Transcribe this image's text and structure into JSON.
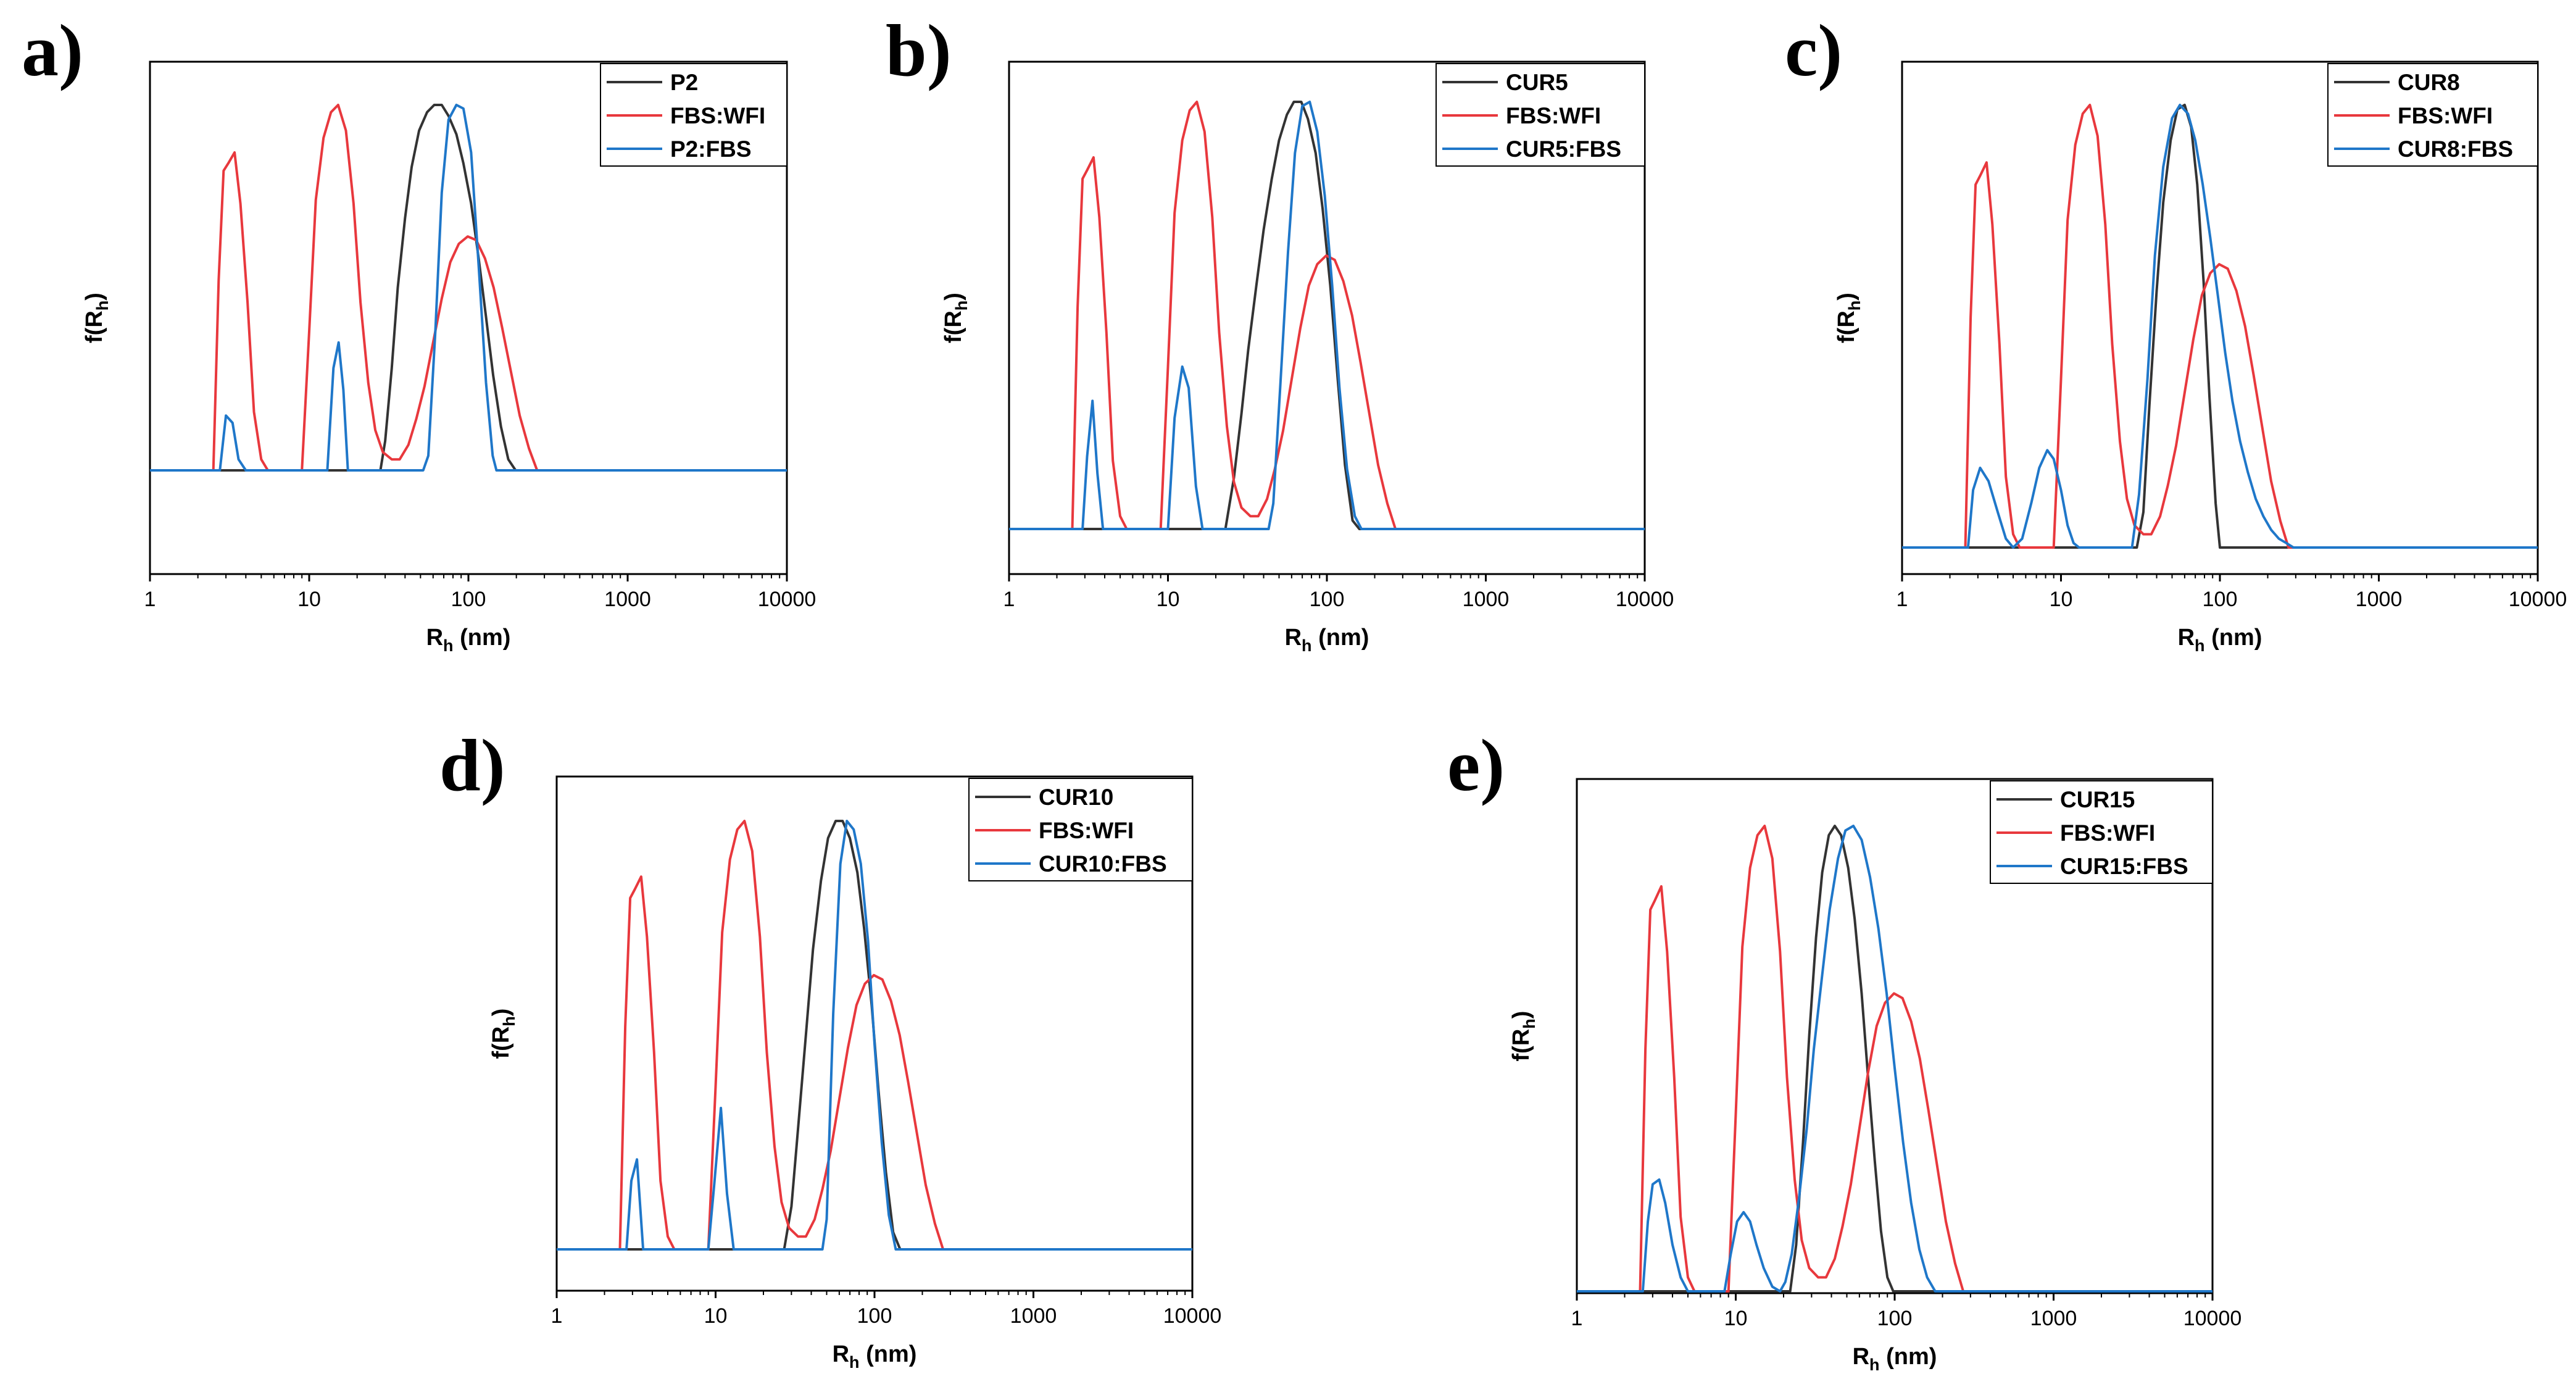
{
  "colors": {
    "black": "#333333",
    "red": "#e8383d",
    "blue": "#1f77c9"
  },
  "chart_data": [
    {
      "type": "line",
      "panel": "a)",
      "xscale": "log",
      "xlim": [
        1,
        10000
      ],
      "xticks": [
        "1",
        "10",
        "100",
        "1000",
        "10000"
      ],
      "xlabel": "R",
      "xlabel_sub": "h",
      "xlabel_unit": " (nm)",
      "ylabel": "f(R",
      "ylabel_sub": "h",
      "ylabel_end": ")",
      "series": [
        {
          "name": "P2",
          "color": "black",
          "x": [
            1,
            28,
            30,
            33,
            36,
            40,
            44,
            49,
            55,
            61,
            68,
            75,
            84,
            93,
            104,
            116,
            129,
            143,
            160,
            178,
            198,
            220,
            10000
          ],
          "y": [
            0,
            0,
            0.08,
            0.28,
            0.5,
            0.69,
            0.83,
            0.93,
            0.98,
            1.0,
            1.0,
            0.97,
            0.92,
            0.84,
            0.73,
            0.58,
            0.42,
            0.26,
            0.12,
            0.03,
            0,
            0,
            0
          ]
        },
        {
          "name": "FBS:WFI",
          "color": "red",
          "x": [
            1,
            2.5,
            2.7,
            2.9,
            3.1,
            3.4,
            3.7,
            4.1,
            4.5,
            5.0,
            5.5,
            9.0,
            10,
            11,
            12.3,
            13.7,
            15.2,
            17,
            19,
            21,
            23.5,
            26,
            29,
            33,
            37,
            42,
            47,
            53,
            60,
            68,
            77,
            87,
            99,
            112,
            127,
            144,
            163,
            185,
            210,
            240,
            270,
            10000
          ],
          "y": [
            0,
            0,
            0.52,
            0.82,
            0.84,
            0.87,
            0.73,
            0.46,
            0.16,
            0.03,
            0,
            0,
            0.38,
            0.74,
            0.91,
            0.98,
            1.0,
            0.93,
            0.73,
            0.46,
            0.24,
            0.11,
            0.05,
            0.03,
            0.03,
            0.07,
            0.14,
            0.23,
            0.35,
            0.47,
            0.57,
            0.62,
            0.64,
            0.63,
            0.58,
            0.5,
            0.39,
            0.27,
            0.15,
            0.06,
            0,
            0
          ]
        },
        {
          "name": "P2:FBS",
          "color": "blue",
          "x": [
            1,
            2.75,
            3.0,
            3.3,
            3.6,
            4.0,
            13,
            14.2,
            15.3,
            16.4,
            17.5,
            52,
            56,
            62,
            68,
            75,
            84,
            93,
            104,
            116,
            129,
            142,
            150,
            10000
          ],
          "y": [
            0,
            0,
            0.15,
            0.13,
            0.03,
            0,
            0,
            0.28,
            0.35,
            0.22,
            0,
            0,
            0.04,
            0.38,
            0.76,
            0.96,
            1.0,
            0.99,
            0.87,
            0.56,
            0.24,
            0.04,
            0,
            0
          ]
        }
      ]
    },
    {
      "type": "line",
      "panel": "b)",
      "xscale": "log",
      "xlim": [
        1,
        10000
      ],
      "xticks": [
        "1",
        "10",
        "100",
        "1000",
        "10000"
      ],
      "xlabel": "R",
      "xlabel_sub": "h",
      "xlabel_unit": " (nm)",
      "ylabel": "f(R",
      "ylabel_sub": "h",
      "ylabel_end": ")",
      "series": [
        {
          "name": "CUR5",
          "color": "black",
          "x": [
            1,
            23,
            26,
            29,
            32,
            36,
            40,
            45,
            50,
            56,
            62,
            69,
            76,
            85,
            94,
            105,
            117,
            130,
            145,
            160,
            10000
          ],
          "y": [
            0,
            0,
            0.12,
            0.27,
            0.42,
            0.57,
            0.7,
            0.82,
            0.91,
            0.97,
            1.0,
            1.0,
            0.96,
            0.88,
            0.75,
            0.57,
            0.35,
            0.15,
            0.02,
            0,
            0
          ]
        },
        {
          "name": "FBS:WFI",
          "color": "red",
          "x": [
            1,
            2.5,
            2.7,
            2.9,
            3.1,
            3.4,
            3.7,
            4.1,
            4.5,
            5.0,
            5.5,
            9.0,
            10,
            11,
            12.3,
            13.7,
            15.2,
            17,
            19,
            21,
            23.5,
            26,
            29,
            33,
            37,
            42,
            47,
            53,
            60,
            68,
            77,
            87,
            99,
            112,
            127,
            144,
            163,
            185,
            210,
            240,
            270,
            10000
          ],
          "y": [
            0,
            0,
            0.52,
            0.82,
            0.84,
            0.87,
            0.73,
            0.46,
            0.16,
            0.03,
            0,
            0,
            0.38,
            0.74,
            0.91,
            0.98,
            1.0,
            0.93,
            0.73,
            0.46,
            0.24,
            0.11,
            0.05,
            0.03,
            0.03,
            0.07,
            0.14,
            0.23,
            0.35,
            0.47,
            0.57,
            0.62,
            0.64,
            0.63,
            0.58,
            0.5,
            0.39,
            0.27,
            0.15,
            0.06,
            0,
            0
          ]
        },
        {
          "name": "CUR5:FBS",
          "color": "blue",
          "x": [
            1,
            2.9,
            3.1,
            3.35,
            3.6,
            3.9,
            10,
            11,
            12.3,
            13.5,
            15,
            16.5,
            43,
            46,
            51,
            57,
            63,
            70,
            78,
            87,
            97,
            108,
            120,
            134,
            150,
            165,
            10000
          ],
          "y": [
            0,
            0,
            0.17,
            0.3,
            0.13,
            0,
            0,
            0.26,
            0.38,
            0.33,
            0.1,
            0,
            0,
            0.06,
            0.34,
            0.65,
            0.88,
            0.99,
            1.0,
            0.93,
            0.78,
            0.57,
            0.33,
            0.14,
            0.03,
            0,
            0
          ]
        }
      ]
    },
    {
      "type": "line",
      "panel": "c)",
      "xscale": "log",
      "xlim": [
        1,
        10000
      ],
      "xticks": [
        "1",
        "10",
        "100",
        "1000",
        "10000"
      ],
      "xlabel": "R",
      "xlabel_sub": "h",
      "xlabel_unit": " (nm)",
      "ylabel": "f(R",
      "ylabel_sub": "h",
      "ylabel_end": ")",
      "series": [
        {
          "name": "CUR8",
          "color": "black",
          "x": [
            1,
            30,
            33,
            36,
            40,
            44,
            49,
            54,
            60,
            66,
            72,
            79,
            86,
            94,
            100,
            10000
          ],
          "y": [
            0,
            0,
            0.08,
            0.32,
            0.58,
            0.78,
            0.92,
            0.99,
            1.0,
            0.95,
            0.82,
            0.6,
            0.34,
            0.1,
            0,
            0
          ]
        },
        {
          "name": "FBS:WFI",
          "color": "red",
          "x": [
            1,
            2.5,
            2.7,
            2.9,
            3.1,
            3.4,
            3.7,
            4.1,
            4.5,
            5.0,
            5.5,
            9.0,
            10,
            11,
            12.3,
            13.7,
            15.2,
            17,
            19,
            21,
            23.5,
            26,
            29,
            33,
            37,
            42,
            47,
            53,
            60,
            68,
            77,
            87,
            99,
            112,
            127,
            144,
            163,
            185,
            210,
            240,
            270,
            10000
          ],
          "y": [
            0,
            0,
            0.52,
            0.82,
            0.84,
            0.87,
            0.73,
            0.46,
            0.16,
            0.03,
            0,
            0,
            0.38,
            0.74,
            0.91,
            0.98,
            1.0,
            0.93,
            0.73,
            0.46,
            0.24,
            0.11,
            0.05,
            0.03,
            0.03,
            0.07,
            0.14,
            0.23,
            0.35,
            0.47,
            0.57,
            0.62,
            0.64,
            0.63,
            0.58,
            0.5,
            0.39,
            0.27,
            0.15,
            0.06,
            0,
            0
          ]
        },
        {
          "name": "CUR8:FBS",
          "color": "blue",
          "x": [
            1,
            2.6,
            2.8,
            3.1,
            3.5,
            4.0,
            4.5,
            5.0,
            5.7,
            6.5,
            7.3,
            8.2,
            9.0,
            10,
            11,
            12,
            13,
            28,
            31,
            35,
            39,
            44,
            50,
            56,
            63,
            70,
            78,
            87,
            97,
            108,
            120,
            134,
            150,
            168,
            188,
            210,
            235,
            262,
            290,
            10000
          ],
          "y": [
            0,
            0,
            0.13,
            0.18,
            0.15,
            0.08,
            0.02,
            0,
            0.02,
            0.1,
            0.18,
            0.22,
            0.2,
            0.13,
            0.05,
            0.01,
            0,
            0,
            0.12,
            0.38,
            0.66,
            0.86,
            0.97,
            1.0,
            0.98,
            0.92,
            0.82,
            0.7,
            0.57,
            0.44,
            0.33,
            0.24,
            0.17,
            0.11,
            0.07,
            0.04,
            0.02,
            0.01,
            0,
            0
          ]
        }
      ]
    },
    {
      "type": "line",
      "panel": "d)",
      "xscale": "log",
      "xlim": [
        1,
        10000
      ],
      "xticks": [
        "1",
        "10",
        "100",
        "1000",
        "10000"
      ],
      "xlabel": "R",
      "xlabel_sub": "h",
      "xlabel_unit": " (nm)",
      "ylabel": "f(R",
      "ylabel_sub": "h",
      "ylabel_end": ")",
      "series": [
        {
          "name": "CUR10",
          "color": "black",
          "x": [
            1,
            27,
            30,
            33,
            37,
            41,
            46,
            51,
            57,
            63,
            70,
            78,
            86,
            96,
            106,
            118,
            131,
            145,
            150,
            10000
          ],
          "y": [
            0,
            0,
            0.1,
            0.28,
            0.5,
            0.7,
            0.86,
            0.96,
            1.0,
            1.0,
            0.96,
            0.88,
            0.75,
            0.57,
            0.37,
            0.18,
            0.04,
            0,
            0,
            0
          ]
        },
        {
          "name": "FBS:WFI",
          "color": "red",
          "x": [
            1,
            2.5,
            2.7,
            2.9,
            3.1,
            3.4,
            3.7,
            4.1,
            4.5,
            5.0,
            5.5,
            9.0,
            10,
            11,
            12.3,
            13.7,
            15.2,
            17,
            19,
            21,
            23.5,
            26,
            29,
            33,
            37,
            42,
            47,
            53,
            60,
            68,
            77,
            87,
            99,
            112,
            127,
            144,
            163,
            185,
            210,
            240,
            270,
            10000
          ],
          "y": [
            0,
            0,
            0.52,
            0.82,
            0.84,
            0.87,
            0.73,
            0.46,
            0.16,
            0.03,
            0,
            0,
            0.38,
            0.74,
            0.91,
            0.98,
            1.0,
            0.93,
            0.73,
            0.46,
            0.24,
            0.11,
            0.05,
            0.03,
            0.03,
            0.07,
            0.14,
            0.23,
            0.35,
            0.47,
            0.57,
            0.62,
            0.64,
            0.63,
            0.58,
            0.5,
            0.39,
            0.27,
            0.15,
            0.06,
            0,
            0
          ]
        },
        {
          "name": "CUR10:FBS",
          "color": "blue",
          "x": [
            1,
            2.75,
            2.95,
            3.2,
            3.5,
            9.0,
            9.8,
            10.8,
            11.8,
            13,
            47,
            50,
            55,
            61,
            67,
            74,
            82,
            91,
            100,
            111,
            123,
            136,
            150,
            10000
          ],
          "y": [
            0,
            0,
            0.16,
            0.21,
            0,
            0,
            0.15,
            0.33,
            0.13,
            0,
            0,
            0.07,
            0.55,
            0.9,
            1.0,
            0.98,
            0.9,
            0.72,
            0.48,
            0.25,
            0.08,
            0,
            0,
            0
          ]
        }
      ]
    },
    {
      "type": "line",
      "panel": "e)",
      "xscale": "log",
      "xlim": [
        1,
        10000
      ],
      "xticks": [
        "1",
        "10",
        "100",
        "1000",
        "10000"
      ],
      "xlabel": "R",
      "xlabel_sub": "h",
      "xlabel_unit": " (nm)",
      "ylabel": "f(R",
      "ylabel_sub": "h",
      "ylabel_end": ")",
      "series": [
        {
          "name": "CUR15",
          "color": "black",
          "x": [
            1,
            22,
            24,
            26.5,
            29,
            32,
            35,
            38.5,
            42,
            46,
            51,
            56,
            62,
            68,
            75,
            82,
            90,
            98,
            105,
            10000
          ],
          "y": [
            0,
            0,
            0.1,
            0.32,
            0.55,
            0.76,
            0.9,
            0.98,
            1.0,
            0.98,
            0.91,
            0.8,
            0.64,
            0.46,
            0.28,
            0.13,
            0.03,
            0,
            0,
            0
          ]
        },
        {
          "name": "FBS:WFI",
          "color": "red",
          "x": [
            1,
            2.5,
            2.7,
            2.9,
            3.1,
            3.4,
            3.7,
            4.1,
            4.5,
            5.0,
            5.5,
            9.0,
            10,
            11,
            12.3,
            13.7,
            15.2,
            17,
            19,
            21,
            23.5,
            26,
            29,
            33,
            37,
            42,
            47,
            53,
            60,
            68,
            77,
            87,
            99,
            112,
            127,
            144,
            163,
            185,
            210,
            240,
            270,
            10000
          ],
          "y": [
            0,
            0,
            0.52,
            0.82,
            0.84,
            0.87,
            0.73,
            0.46,
            0.16,
            0.03,
            0,
            0,
            0.38,
            0.74,
            0.91,
            0.98,
            1.0,
            0.93,
            0.73,
            0.46,
            0.24,
            0.11,
            0.05,
            0.03,
            0.03,
            0.07,
            0.14,
            0.23,
            0.35,
            0.47,
            0.57,
            0.62,
            0.64,
            0.63,
            0.58,
            0.5,
            0.39,
            0.27,
            0.15,
            0.06,
            0,
            0
          ]
        },
        {
          "name": "CUR15:FBS",
          "color": "blue",
          "x": [
            1,
            2.6,
            2.8,
            3.0,
            3.3,
            3.6,
            4.0,
            4.5,
            5.0,
            8.5,
            9.3,
            10.2,
            11.2,
            12.3,
            13.5,
            15,
            17,
            19,
            20.5,
            22.5,
            25,
            28,
            31,
            35,
            39,
            44,
            49,
            55,
            62,
            70,
            79,
            89,
            100,
            113,
            127,
            143,
            160,
            180,
            195,
            10000
          ],
          "y": [
            0,
            0,
            0.15,
            0.23,
            0.24,
            0.19,
            0.1,
            0.03,
            0,
            0,
            0.08,
            0.15,
            0.17,
            0.15,
            0.1,
            0.05,
            0.01,
            0,
            0.02,
            0.08,
            0.2,
            0.35,
            0.52,
            0.68,
            0.82,
            0.93,
            0.99,
            1.0,
            0.97,
            0.89,
            0.78,
            0.64,
            0.48,
            0.32,
            0.19,
            0.09,
            0.03,
            0,
            0,
            0
          ]
        }
      ]
    }
  ]
}
